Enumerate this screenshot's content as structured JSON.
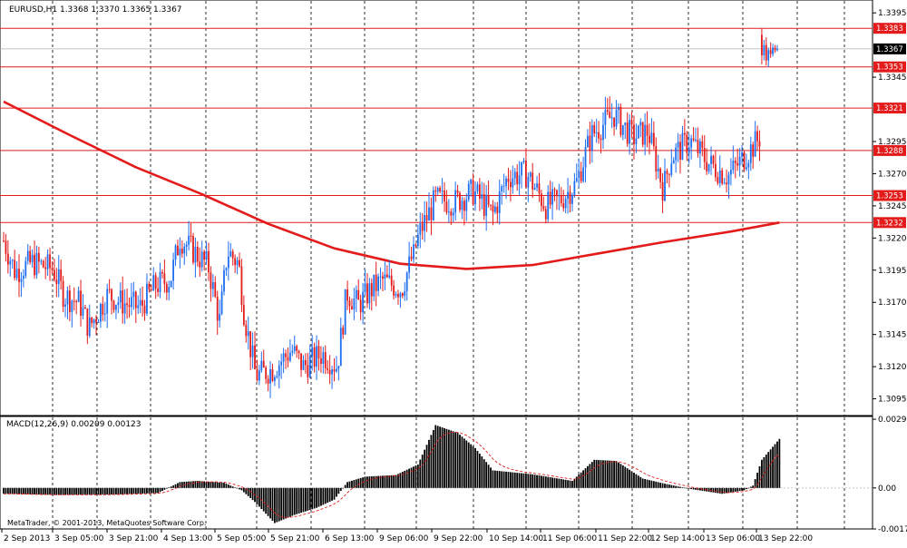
{
  "header": {
    "main_title": "EURUSD,H1  1.3368 1.3370 1.3365 1.3367",
    "macd_title": "MACD(12,26,9) 0.00209 0.00123",
    "watermark": "MetaTrader, © 2001-2013, MetaQuotes Software Corp."
  },
  "colors": {
    "bull": "#1e6ef0",
    "bear": "#e31b1b",
    "ma": "#e31b1b",
    "level": "#e31b1b",
    "grid": "#000000",
    "histogram": "#000000",
    "signal": "#e31b1b",
    "label_text": "#ffffff",
    "current_price_bg": "#000000"
  },
  "chart_data": [
    {
      "type": "candlestick",
      "symbol": "EURUSD",
      "timeframe": "H1",
      "ohlc_header": {
        "open": 1.3368,
        "high": 1.337,
        "low": 1.3365,
        "close": 1.3367
      },
      "ylim": [
        1.3082,
        1.3405
      ],
      "y_ticks": [
        "1.3395",
        "1.3345",
        "1.3295",
        "1.3270",
        "1.3245",
        "1.3220",
        "1.3195",
        "1.3170",
        "1.3145",
        "1.3120",
        "1.3095"
      ],
      "x_ticks": [
        "2 Sep 2013",
        "3 Sep 05:00",
        "3 Sep 21:00",
        "4 Sep 13:00",
        "5 Sep 05:00",
        "5 Sep 21:00",
        "6 Sep 13:00",
        "9 Sep 06:00",
        "9 Sep 22:00",
        "10 Sep 14:00",
        "11 Sep 06:00",
        "11 Sep 22:00",
        "12 Sep 14:00",
        "13 Sep 06:00",
        "13 Sep 22:00"
      ],
      "grid": "vertical dashed",
      "current_price": "1.3367",
      "horizontal_levels": [
        "1.3383",
        "1.3353",
        "1.3321",
        "1.3288",
        "1.3253",
        "1.3232"
      ],
      "moving_average": [
        {
          "bar": 0,
          "value": 1.3326
        },
        {
          "bar": 30,
          "value": 1.33
        },
        {
          "bar": 60,
          "value": 1.3275
        },
        {
          "bar": 90,
          "value": 1.3254
        },
        {
          "bar": 120,
          "value": 1.3231
        },
        {
          "bar": 150,
          "value": 1.3212
        },
        {
          "bar": 180,
          "value": 1.32
        },
        {
          "bar": 210,
          "value": 1.3196
        },
        {
          "bar": 240,
          "value": 1.3199
        },
        {
          "bar": 270,
          "value": 1.3208
        },
        {
          "bar": 300,
          "value": 1.3217
        },
        {
          "bar": 330,
          "value": 1.3225
        },
        {
          "bar": 352,
          "value": 1.3232
        }
      ],
      "candles_note": "one candle per hourly bar; OHLC values estimated from the price axis",
      "candles": []
    },
    {
      "type": "histogram",
      "indicator": "MACD(12,26,9)",
      "main": 0.00209,
      "signal": 0.00123,
      "ylim": [
        -0.00175,
        0.00305
      ],
      "y_ticks": [
        "0.00293",
        "0.00",
        "-0.00175"
      ],
      "macd_values": [],
      "signal_values": []
    }
  ]
}
